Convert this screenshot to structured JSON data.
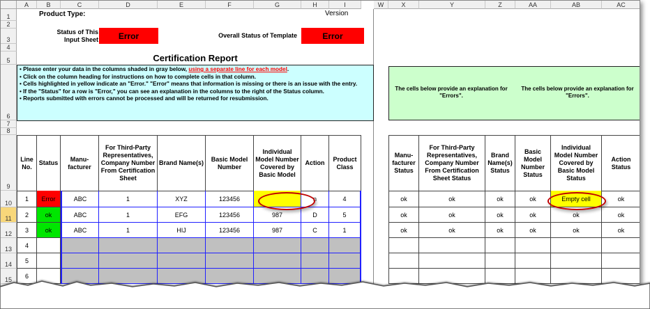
{
  "column_headers": [
    "A",
    "B",
    "C",
    "D",
    "E",
    "F",
    "G",
    "H",
    "I",
    "W",
    "X",
    "Y",
    "Z",
    "AA",
    "AB",
    "AC"
  ],
  "row_headers": [
    "1",
    "2",
    "3",
    "4",
    "5",
    "6",
    "7",
    "8",
    "9",
    "10",
    "11",
    "12",
    "13",
    "14",
    "15"
  ],
  "top": {
    "product_type_label": "Product Type:",
    "version_label": "Version",
    "input_status_label": "Status of This Input Sheet",
    "input_status_value": "Error",
    "overall_status_label": "Overall Status of Template",
    "overall_status_value": "Error",
    "report_title": "Certification Report"
  },
  "instructions": {
    "line1_prefix": "• Please enter your data in the columns shaded in gray below, ",
    "line1_link": "using a separate line for each model",
    "line1_suffix": ".",
    "line2": "• Click on the column heading for instructions on how to complete cells in that column.",
    "line3": "• Cells highlighted in yellow indicate an \"Error.\"  \"Error\" means that information is missing or there is an issue with the entry.",
    "line4": "• If the \"Status\" for a row is \"Error,\" you can see an explanation in the columns to the right of the Status column.",
    "line5": "• Reports submitted with errors cannot be processed and will be returned for resubmission."
  },
  "explanation_notes": [
    "The cells below provide an explanation for \"Errors\".",
    "The cells below provide an explanation for \"Errors\"."
  ],
  "input_table": {
    "headers": [
      "Line No.",
      "Status",
      "Manu-facturer",
      "For Third-Party Representatives, Company Number From Certification Sheet",
      "Brand Name(s)",
      "Basic Model Number",
      "Individual Model Number Covered by Basic Model",
      "Action",
      "Product Class"
    ],
    "rows": [
      [
        "1",
        "Error",
        "ABC",
        "1",
        "XYZ",
        "123456",
        "",
        "n",
        "4"
      ],
      [
        "2",
        "ok",
        "ABC",
        "1",
        "EFG",
        "123456",
        "987",
        "D",
        "5"
      ],
      [
        "3",
        "ok",
        "ABC",
        "1",
        "HIJ",
        "123456",
        "987",
        "C",
        "1"
      ],
      [
        "4",
        "",
        "",
        "",
        "",
        "",
        "",
        "",
        ""
      ],
      [
        "5",
        "",
        "",
        "",
        "",
        "",
        "",
        "",
        ""
      ],
      [
        "6",
        "",
        "",
        "",
        "",
        "",
        "",
        "",
        ""
      ]
    ]
  },
  "status_table": {
    "headers": [
      "Manu-facturer Status",
      "For Third-Party Representatives, Company Number From Certification Sheet Status",
      "Brand Name(s) Status",
      "Basic Model Number Status",
      "Individual Model Number Covered by Basic Model Status",
      "Action Status"
    ],
    "rows": [
      [
        "ok",
        "ok",
        "ok",
        "ok",
        "Empty cell",
        "ok"
      ],
      [
        "ok",
        "ok",
        "ok",
        "ok",
        "ok",
        "ok"
      ],
      [
        "ok",
        "ok",
        "ok",
        "ok",
        "ok",
        "ok"
      ],
      [
        "",
        "",
        "",
        "",
        "",
        ""
      ],
      [
        "",
        "",
        "",
        "",
        "",
        ""
      ],
      [
        "",
        "",
        "",
        "",
        "",
        ""
      ]
    ]
  },
  "colors": {
    "error": "#ff0000",
    "ok": "#00e600",
    "highlight": "#ffff00",
    "input_shade": "#c0c0c0",
    "instructions_bg": "#ccffff",
    "explanation_bg": "#ccffcc",
    "grid_border": "#2020ff"
  }
}
